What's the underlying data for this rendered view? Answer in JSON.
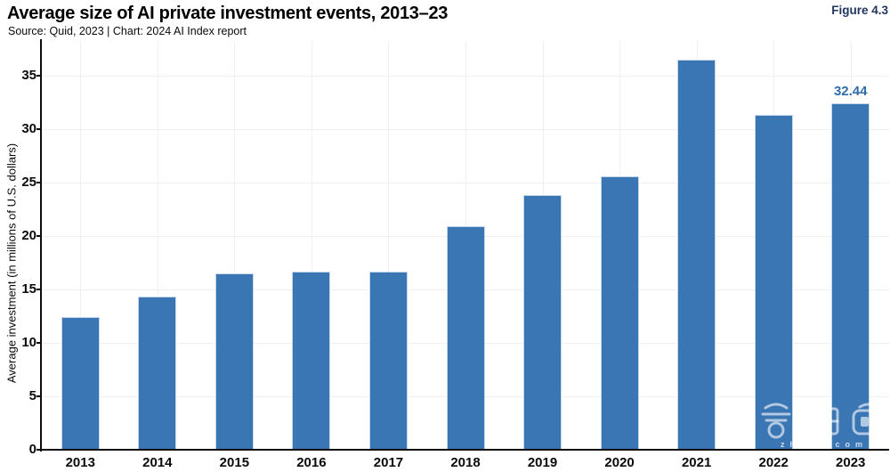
{
  "header": {
    "title": "Average size of AI private investment events, 2013–23",
    "subtitle": "Source: Quid, 2023 | Chart: 2024 AI Index report",
    "figure_label": "Figure 4.3"
  },
  "chart_data": {
    "type": "bar",
    "title": "Average size of AI private investment events, 2013–23",
    "categories": [
      "2013",
      "2014",
      "2015",
      "2016",
      "2017",
      "2018",
      "2019",
      "2020",
      "2021",
      "2022",
      "2023"
    ],
    "values": [
      12.4,
      14.3,
      16.5,
      16.7,
      16.7,
      20.9,
      23.8,
      25.6,
      36.5,
      31.3,
      32.44
    ],
    "annotations": [
      {
        "category": "2023",
        "text": "32.44"
      }
    ],
    "xlabel": "",
    "ylabel": "Average investment (in millions of U.S. dollars)",
    "ylim": [
      0,
      38.25
    ],
    "yticks": [
      0,
      5,
      10,
      15,
      20,
      25,
      30,
      35
    ],
    "grid": true,
    "legend": "none",
    "colors": {
      "bar_fill": "#3a75b4",
      "bar_border": "#c5d8ea",
      "data_label": "#2d6fad",
      "gridline": "#f0f0f0",
      "axis": "#0d0d0d",
      "figure_label": "#1f355e"
    }
  },
  "watermark": {
    "characters": "智東西",
    "subtext": "zhidx.com"
  }
}
